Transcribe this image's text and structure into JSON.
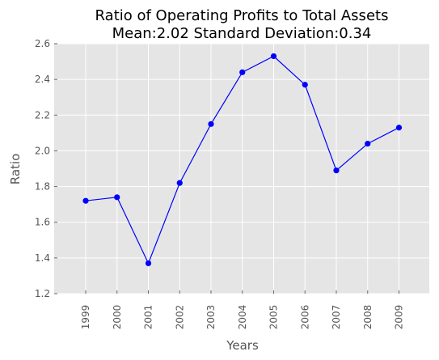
{
  "chart_data": {
    "type": "line",
    "title_line1": "Ratio of Operating Profits to Total Assets",
    "title_line2": "Mean:2.02 Standard Deviation:0.34",
    "xlabel": "Years",
    "ylabel": "Ratio",
    "categories": [
      "1999",
      "2000",
      "2001",
      "2002",
      "2003",
      "2004",
      "2005",
      "2006",
      "2007",
      "2008",
      "2009"
    ],
    "values": [
      1.72,
      1.74,
      1.37,
      1.82,
      2.15,
      2.44,
      2.53,
      2.37,
      1.89,
      2.04,
      2.13
    ],
    "yticks": [
      "1.2",
      "1.4",
      "1.6",
      "1.8",
      "2.0",
      "2.2",
      "2.4",
      "2.6"
    ],
    "ylim": [
      1.2,
      2.6
    ],
    "grid": true,
    "colors": {
      "line": "#0000ff",
      "marker": "#0000ff",
      "background": "#e5e5e5",
      "grid": "#ffffff"
    }
  }
}
